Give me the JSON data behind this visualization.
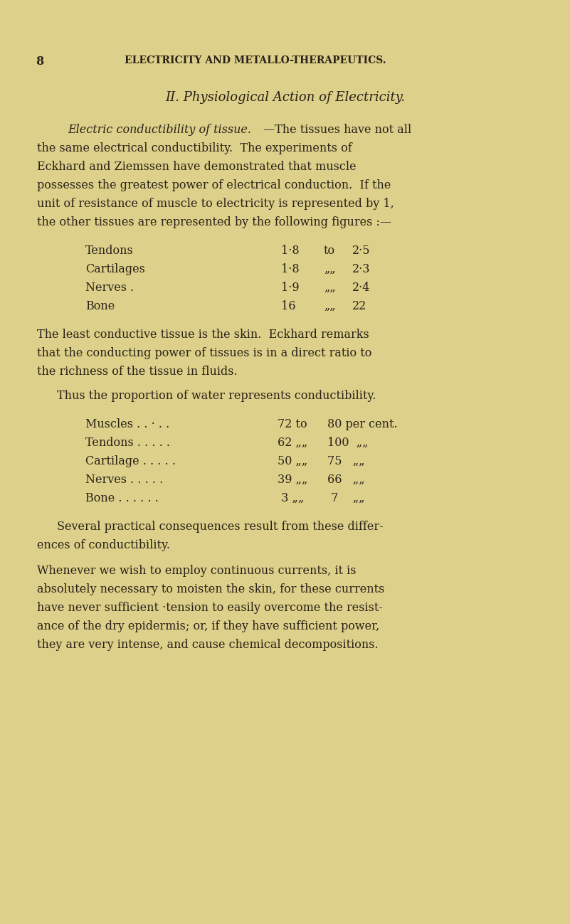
{
  "background_color": "#ddd08a",
  "text_color": "#2a2218",
  "page_number": "8",
  "header": "ELECTRICITY AND METALLO-THERAPEUTICS.",
  "section_title": "II. Physiological Action of Electricity.",
  "italic_lead": "Electric conductibility of tissue.",
  "em_dash": "—",
  "para1_rest": [
    "The tissues have not all",
    "the same electrical conductibility.  The experiments of",
    "Eckhard and Ziemssen have demonstrated that muscle",
    "possesses the greatest power of electrical conduction.  If the",
    "unit of resistance of muscle to electricity is represented by 1,",
    "the other tissues are represented by the following figures :—"
  ],
  "table1_rows": [
    {
      "label": "Tendons",
      "dots": " . . . . .",
      "val1": "1·8",
      "sep": "to",
      "val2": "2·5"
    },
    {
      "label": "Cartilages",
      "dots": " . . . . .",
      "val1": "1·8",
      "sep": "„„",
      "val2": "2·3"
    },
    {
      "label": "Nerves .",
      "dots": " . . . . .",
      "val1": "1·9",
      "sep": "„„",
      "val2": "2·4"
    },
    {
      "label": "Bone",
      "dots": " . . . . . .",
      "val1": "16",
      "sep": "„„",
      "val2": "22"
    }
  ],
  "para2_lines": [
    "The least conductive tissue is the skin.  Eckhard remarks",
    "that the conducting power of tissues is in a direct ratio to",
    "the richness of the tissue in fluids."
  ],
  "para3": "Thus the proportion of water represents conductibility.",
  "table2_rows": [
    {
      "label": "Muscles",
      "dots": " . . · . .",
      "val1": "72 to",
      "val2": "80 per cent."
    },
    {
      "label": "Tendons",
      "dots": " . . . . .",
      "val1": "62 „„",
      "val2": "100  „„"
    },
    {
      "label": "Cartilage",
      "dots": " . . . . .",
      "val1": "50 „„",
      "val2": "75   „„"
    },
    {
      "label": "Nerves",
      "dots": " . . . . .",
      "val1": "39 „„",
      "val2": "66   „„"
    },
    {
      "label": "Bone .",
      "dots": " . . . . .",
      "val1": " 3 „„",
      "val2": " 7    „„"
    }
  ],
  "para4_lines": [
    "Several practical consequences result from these differ-",
    "ences of conductibility."
  ],
  "para5_lines": [
    "Whenever we wish to employ continuous currents, it is",
    "absolutely necessary to moisten the skin, for these currents",
    "have never sufficient ·tension to easily overcome the resist-",
    "ance of the dry epidermis; or, if they have sufficient power,",
    "they are very intense, and cause chemical decompositions."
  ]
}
